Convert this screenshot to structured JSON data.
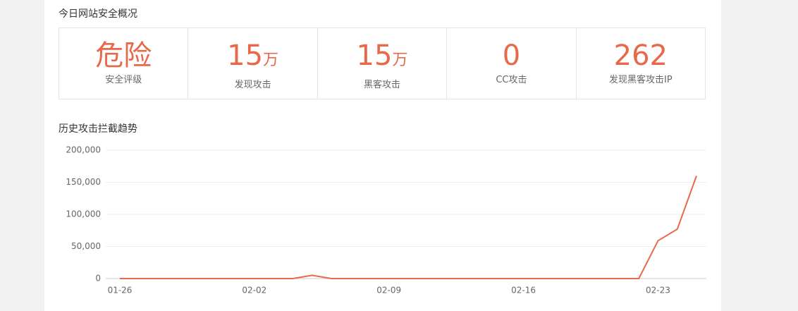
{
  "header": {
    "title": "今日网站安全概况"
  },
  "stats": [
    {
      "value": "危险",
      "label": "安全评级"
    },
    {
      "value": 15,
      "unit": "万",
      "label": "发现攻击"
    },
    {
      "value": 15,
      "unit": "万",
      "label": "黑客攻击"
    },
    {
      "value": 0,
      "label": "CC攻击"
    },
    {
      "value": 262,
      "label": "发现黑客攻击IP"
    }
  ],
  "chart_data": {
    "type": "line",
    "title": "历史攻击拦截趋势",
    "categories": [
      "01-26",
      null,
      null,
      null,
      null,
      null,
      null,
      "02-02",
      null,
      null,
      null,
      null,
      null,
      null,
      "02-09",
      null,
      null,
      null,
      null,
      null,
      null,
      "02-16",
      null,
      null,
      null,
      null,
      null,
      null,
      "02-23",
      null,
      null
    ],
    "values": [
      0,
      0,
      0,
      0,
      0,
      0,
      0,
      0,
      0,
      0,
      5000,
      0,
      0,
      0,
      0,
      0,
      0,
      0,
      0,
      0,
      0,
      0,
      0,
      0,
      0,
      0,
      0,
      0,
      59000,
      77000,
      160000
    ],
    "color": "#e8694a",
    "ylim": [
      0,
      200000
    ],
    "yticks": [
      0,
      {
        "value": 50000,
        "label": "50,000"
      },
      {
        "value": 100000,
        "label": "100,000"
      },
      {
        "value": 150000,
        "label": "150,000"
      },
      {
        "value": 200000,
        "label": "200,000"
      }
    ],
    "grid": true
  }
}
